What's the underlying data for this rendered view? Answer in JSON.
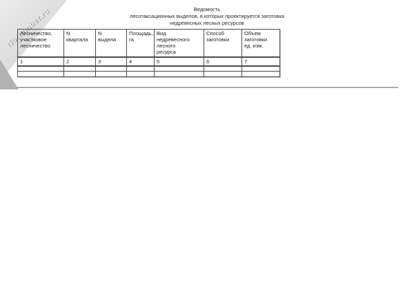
{
  "watermark": {
    "text": "NoNumber.ru"
  },
  "title": {
    "line1": "Ведомость",
    "line2": "лесотаксационных выделов, в которых проектируется заготовка",
    "line3": "недревесных лесных ресурсов"
  },
  "table": {
    "header": [
      "Лесничество,\nучастковое\nлесничество",
      "N\nквартала",
      "N\nвыдела",
      "Площадь,\nга",
      "Вид\nнедревесного\nлесного\nресурса",
      "Способ\nзаготовки",
      "Объем\nзаготовки\nед. изм."
    ],
    "number_row": [
      "1",
      "2",
      "3",
      "4",
      "5",
      "6",
      "7"
    ],
    "empty_row_count": 2
  },
  "colors": {
    "table_border": "#4a4a4a",
    "text": "#222222",
    "divider": "#8d8d8d",
    "watermark_band": "#d9d9d9"
  }
}
